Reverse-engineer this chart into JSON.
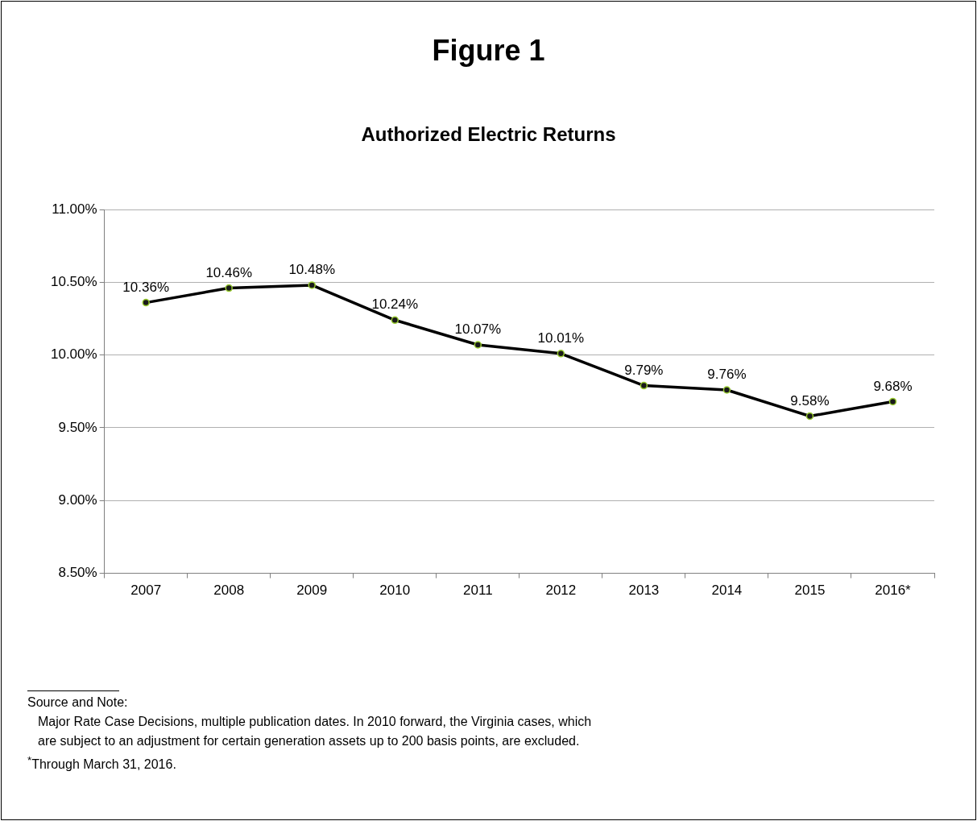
{
  "chart_data": {
    "type": "line",
    "title": "Figure 1",
    "subtitle": "Authorized Electric Returns",
    "categories": [
      "2007",
      "2008",
      "2009",
      "2010",
      "2011",
      "2012",
      "2013",
      "2014",
      "2015",
      "2016*"
    ],
    "series": [
      {
        "color": "#000000",
        "values": [
          10.36,
          10.46,
          10.48,
          10.24,
          10.07,
          10.01,
          9.79,
          9.76,
          9.58,
          9.68
        ],
        "value_labels": [
          "10.36%",
          "10.46%",
          "10.48%",
          "10.24%",
          "10.07%",
          "10.01%",
          "9.79%",
          "9.76%",
          "9.58%",
          "9.68%"
        ]
      }
    ],
    "ylim": [
      8.5,
      11
    ],
    "yticks": [
      {
        "value": 8.5,
        "label": "8.50%"
      },
      {
        "value": 9,
        "label": "9.00%"
      },
      {
        "value": 9.5,
        "label": "9.50%"
      },
      {
        "value": 10,
        "label": "10.00%"
      },
      {
        "value": 10.5,
        "label": "10.50%"
      },
      {
        "value": 11,
        "label": "11.00%"
      }
    ],
    "grid": "y",
    "legend": false,
    "marker": "circle",
    "line_style": "solid",
    "annotations": [
      "Source and Note:",
      "Major Rate Case Decisions, multiple publication dates.  In 2010 forward, the Virginia cases, which are subject to an adjustment for certain generation assets up to 200 basis points, are excluded.",
      "$^{*}$Through March 31, 2016."
    ]
  }
}
